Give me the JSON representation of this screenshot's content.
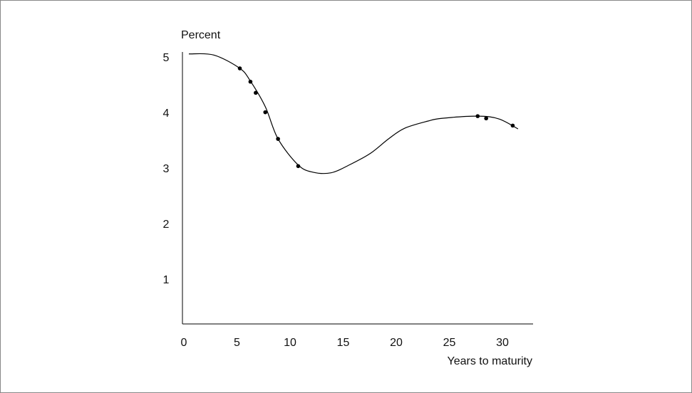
{
  "chart_data": {
    "type": "line",
    "y_label": "Percent",
    "x_label": "Years to maturity",
    "xlim": [
      0,
      33
    ],
    "xticks": [
      0,
      5,
      10,
      15,
      20,
      25,
      30
    ],
    "ylim": [
      0.2,
      5.1
    ],
    "yticks": [
      1,
      2,
      3,
      4,
      5
    ],
    "color": "#000000",
    "curve": {
      "x": [
        0.2,
        2.55,
        5.0,
        6.0,
        7.4,
        8.6,
        10.5,
        11.9,
        13.6,
        15.3,
        17.3,
        19.0,
        20.5,
        22.7,
        24.0,
        27.4,
        29.4,
        31.2
      ],
      "values": [
        5.08,
        5.06,
        4.82,
        4.59,
        4.13,
        3.55,
        3.08,
        2.95,
        2.94,
        3.08,
        3.29,
        3.55,
        3.74,
        3.87,
        3.92,
        3.96,
        3.91,
        3.73
      ]
    },
    "points": {
      "x": [
        5.0,
        6.0,
        6.5,
        7.4,
        8.6,
        10.5,
        27.4,
        28.2,
        30.7
      ],
      "values": [
        4.82,
        4.58,
        4.38,
        4.03,
        3.55,
        3.06,
        3.96,
        3.92,
        3.79
      ]
    }
  }
}
